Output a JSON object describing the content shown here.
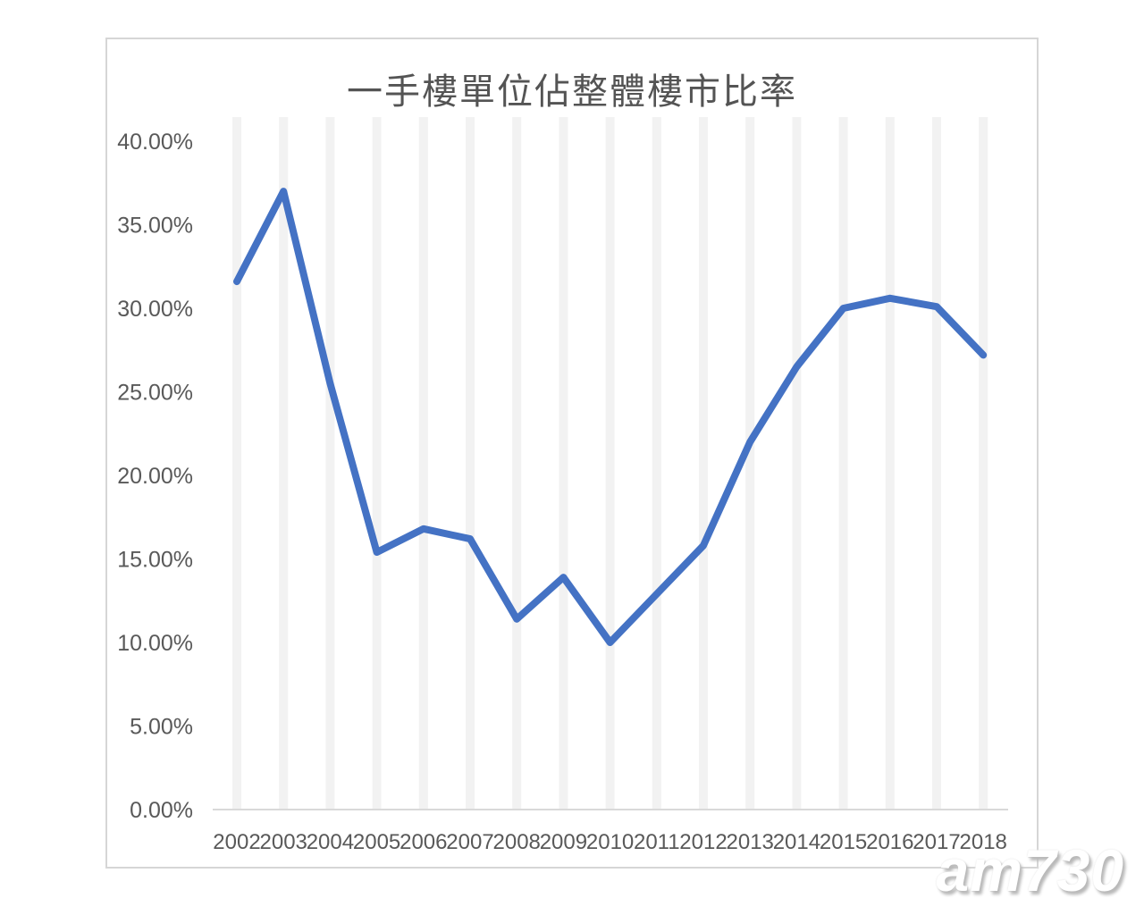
{
  "watermark": {
    "text": "am730"
  },
  "chart_data": {
    "type": "line",
    "title": "一手樓單位佔整體樓市比率",
    "categories": [
      "2002",
      "2003",
      "2004",
      "2005",
      "2006",
      "2007",
      "2008",
      "2009",
      "2010",
      "2011",
      "2012",
      "2013",
      "2014",
      "2015",
      "2016",
      "2017",
      "2018"
    ],
    "values": [
      31.6,
      37.0,
      25.5,
      15.4,
      16.8,
      16.2,
      11.4,
      13.9,
      10.0,
      12.9,
      15.8,
      22.0,
      26.5,
      30.0,
      30.6,
      30.1,
      27.2
    ],
    "unit": "%",
    "ylim": [
      0,
      40
    ],
    "ytick_step": 5,
    "ytick_labels": [
      "0.00%",
      "5.00%",
      "10.00%",
      "15.00%",
      "20.00%",
      "25.00%",
      "30.00%",
      "35.00%",
      "40.00%"
    ],
    "grid": "vertical-bands",
    "legend": "none",
    "line_color": "#4472C4",
    "gridband_color": "#f2f2f2",
    "axis_color": "#d9d9d9",
    "label_color": "#595959"
  }
}
